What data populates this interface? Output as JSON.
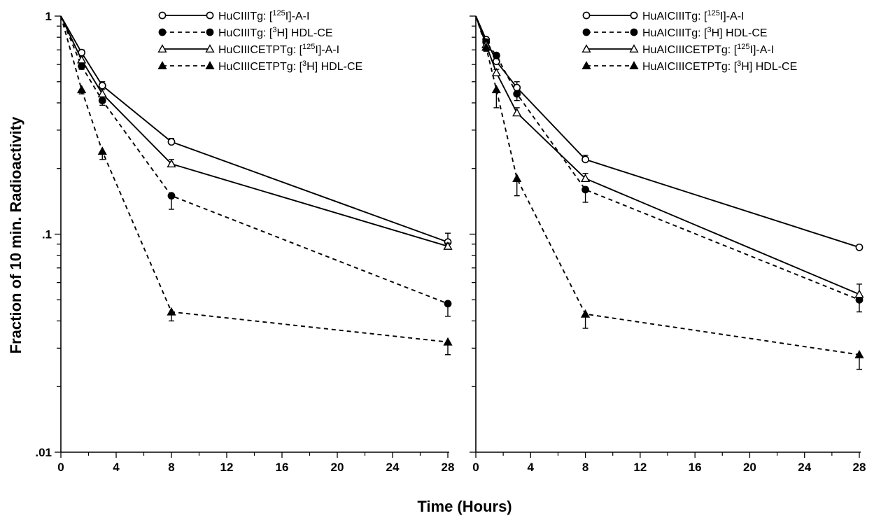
{
  "figure": {
    "ylabel": "Fraction of 10 min. Radioactivity",
    "xlabel": "Time (Hours)"
  },
  "chart_data": [
    {
      "type": "line",
      "panel": "left",
      "y_scale": "log",
      "xlim": [
        0,
        28
      ],
      "ylim": [
        0.01,
        1
      ],
      "x_ticks": [
        "0",
        "4",
        "8",
        "12",
        "16",
        "20",
        "24",
        "28"
      ],
      "y_ticks": [
        ".01",
        ".1",
        "1"
      ],
      "legend_position": "top-center",
      "series": [
        {
          "legend": {
            "prefix": "HuCIIITg: [",
            "sup": "125",
            "suffix": "I]-A-I"
          },
          "marker": "circle-open",
          "line": "solid",
          "x": [
            0,
            1.5,
            3,
            8,
            28
          ],
          "y": [
            1,
            0.68,
            0.48,
            0.265,
            0.092
          ],
          "err": [
            0,
            0.02,
            0.02,
            0.01,
            0.009
          ]
        },
        {
          "legend": {
            "prefix": "HuCIIITg: [",
            "sup": "3",
            "suffix": "H] HDL-CE"
          },
          "marker": "circle-filled",
          "line": "dashed",
          "x": [
            0,
            1.5,
            3,
            8,
            28
          ],
          "y": [
            1,
            0.59,
            0.41,
            0.15,
            0.048
          ],
          "err": [
            0,
            0.02,
            0.02,
            0.02,
            0.006
          ]
        },
        {
          "legend": {
            "prefix": "HuCIIICETPTg: [",
            "sup": "125",
            "suffix": "I]-A-I"
          },
          "marker": "triangle-open",
          "line": "solid",
          "x": [
            0,
            1.5,
            3,
            8,
            28
          ],
          "y": [
            1,
            0.63,
            0.44,
            0.21,
            0.088
          ],
          "err": [
            0,
            0.02,
            0.02,
            0.01,
            0.003
          ]
        },
        {
          "legend": {
            "prefix": "HuCIIICETPTg: [",
            "sup": "3",
            "suffix": "H] HDL-CE"
          },
          "marker": "triangle-filled",
          "line": "dashed",
          "x": [
            0,
            1.5,
            3,
            8,
            28
          ],
          "y": [
            1,
            0.46,
            0.24,
            0.044,
            0.032
          ],
          "err": [
            0,
            0.02,
            0.02,
            0.004,
            0.004
          ]
        }
      ]
    },
    {
      "type": "line",
      "panel": "right",
      "y_scale": "log",
      "xlim": [
        0,
        28
      ],
      "ylim": [
        0.01,
        1
      ],
      "x_ticks": [
        "0",
        "4",
        "8",
        "12",
        "16",
        "20",
        "24",
        "28"
      ],
      "y_ticks": [],
      "legend_position": "top-right",
      "series": [
        {
          "legend": {
            "prefix": "HuAICIIITg: [",
            "sup": "125",
            "suffix": "I]-A-I"
          },
          "marker": "circle-open",
          "line": "solid",
          "x": [
            0,
            0.75,
            1.5,
            3,
            8,
            28
          ],
          "y": [
            1,
            0.78,
            0.62,
            0.47,
            0.22,
            0.087
          ],
          "err": [
            0,
            0.02,
            0.02,
            0.03,
            0.01,
            0.002
          ]
        },
        {
          "legend": {
            "prefix": "HuAICIIITg: [",
            "sup": "3",
            "suffix": "H] HDL-CE"
          },
          "marker": "circle-filled",
          "line": "dashed",
          "x": [
            0,
            0.75,
            1.5,
            3,
            8,
            28
          ],
          "y": [
            1,
            0.76,
            0.66,
            0.44,
            0.16,
            0.05
          ],
          "err": [
            0,
            0.02,
            0.02,
            0.03,
            0.02,
            0.006
          ]
        },
        {
          "legend": {
            "prefix": "HuAICIIICETPTg: [",
            "sup": "125",
            "suffix": "I]-A-I"
          },
          "marker": "triangle-open",
          "line": "solid",
          "x": [
            0,
            0.75,
            1.5,
            3,
            8,
            28
          ],
          "y": [
            1,
            0.74,
            0.55,
            0.36,
            0.18,
            0.053
          ],
          "err": [
            0,
            0.02,
            0.02,
            0.02,
            0.01,
            0.006
          ]
        },
        {
          "legend": {
            "prefix": "HuAICIIICETPTg: [",
            "sup": "3",
            "suffix": "H] HDL-CE"
          },
          "marker": "triangle-filled",
          "line": "dashed",
          "x": [
            0,
            0.75,
            1.5,
            3,
            8,
            28
          ],
          "y": [
            1,
            0.72,
            0.46,
            0.18,
            0.043,
            0.028
          ],
          "err": [
            0,
            0.03,
            0.08,
            0.03,
            0.006,
            0.004
          ]
        }
      ]
    }
  ]
}
